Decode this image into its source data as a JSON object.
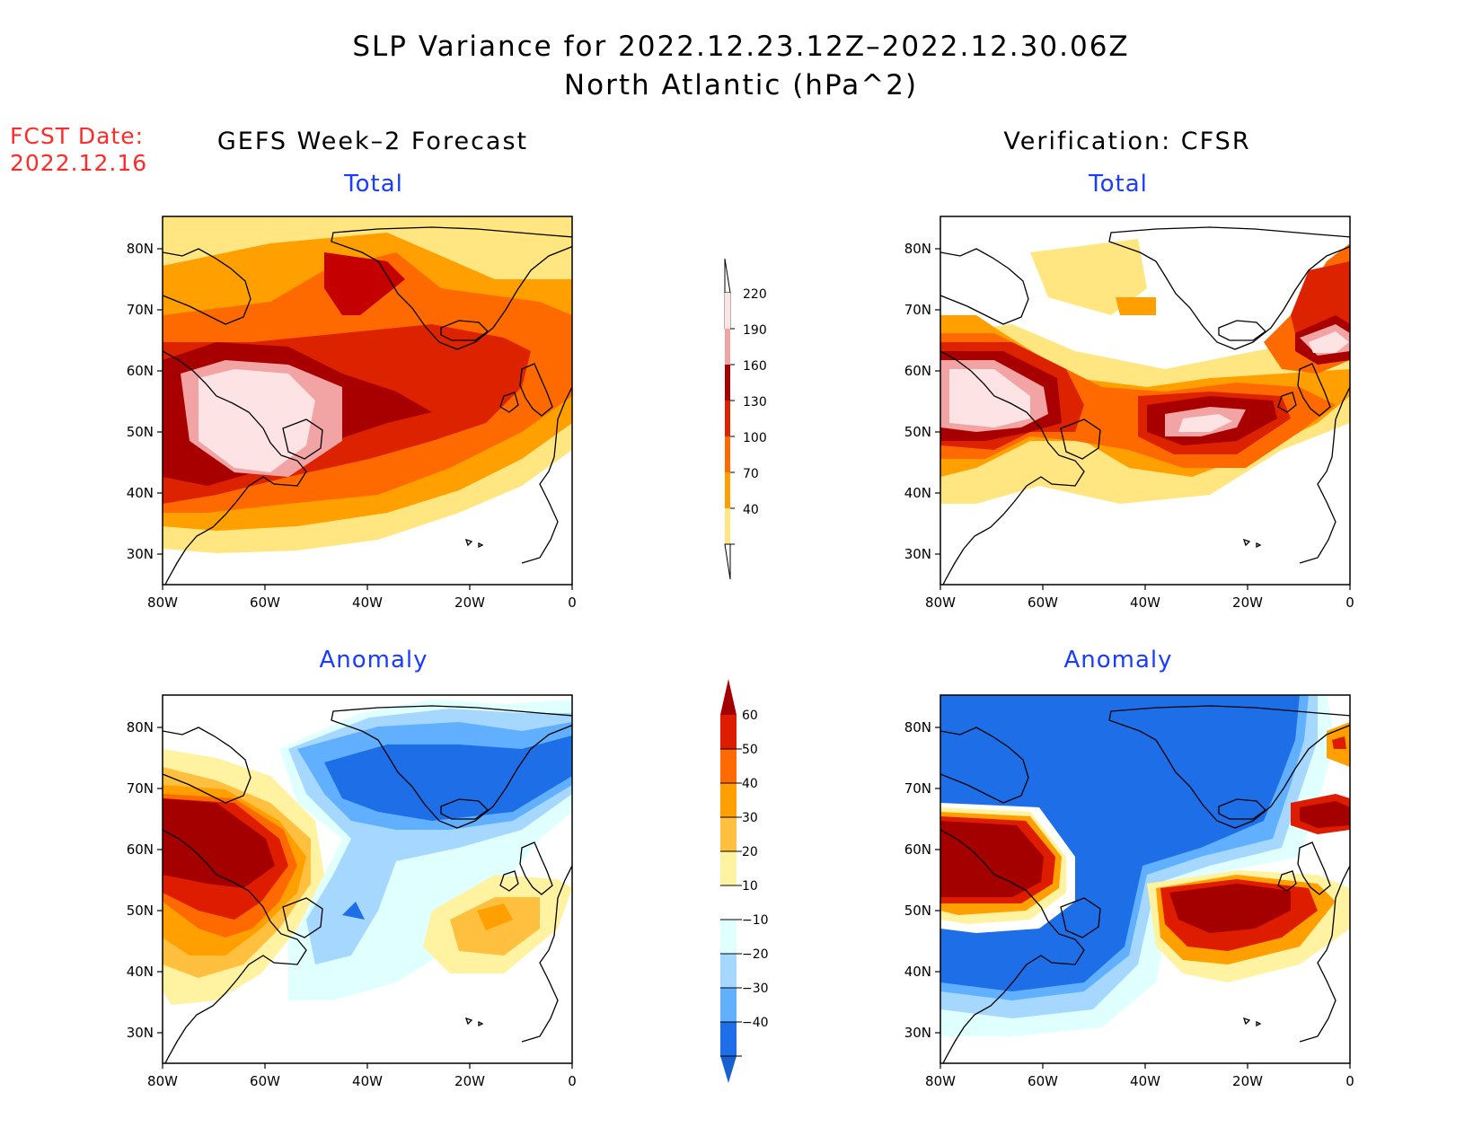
{
  "title": {
    "line1": "SLP Variance for 2022.12.23.12Z–2022.12.30.06Z",
    "line2": "North Atlantic (hPa^2)"
  },
  "fcst": {
    "label": "FCST Date:",
    "date": "2022.12.16"
  },
  "headers": {
    "left": "GEFS Week–2 Forecast",
    "right": "Verification: CFSR"
  },
  "panel_titles": {
    "top_left": "Total",
    "top_right": "Total",
    "bottom_left": "Anomaly",
    "bottom_right": "Anomaly"
  },
  "axes": {
    "lon_ticks": [
      "80W",
      "60W",
      "40W",
      "20W",
      "0"
    ],
    "lat_ticks": [
      "80N",
      "70N",
      "60N",
      "50N",
      "40N",
      "30N"
    ]
  },
  "colorbar_total": {
    "levels": [
      "220",
      "190",
      "160",
      "130",
      "100",
      "70",
      "40"
    ],
    "colors": [
      "#fde3e3",
      "#f2a3a3",
      "#a80000",
      "#dd2200",
      "#ff6a00",
      "#ffa000",
      "#ffe680"
    ]
  },
  "colorbar_anomaly": {
    "levels": [
      "60",
      "50",
      "40",
      "30",
      "20",
      "10",
      "−10",
      "−20",
      "−30",
      "−40"
    ],
    "colors": [
      "#a50000",
      "#dd1c00",
      "#ff6a00",
      "#ffa000",
      "#ffc040",
      "#fff2a0",
      "#ffffff",
      "#e0ffff",
      "#a6d8ff",
      "#60b0ff",
      "#1e6ee8",
      "#1860d0"
    ]
  }
}
